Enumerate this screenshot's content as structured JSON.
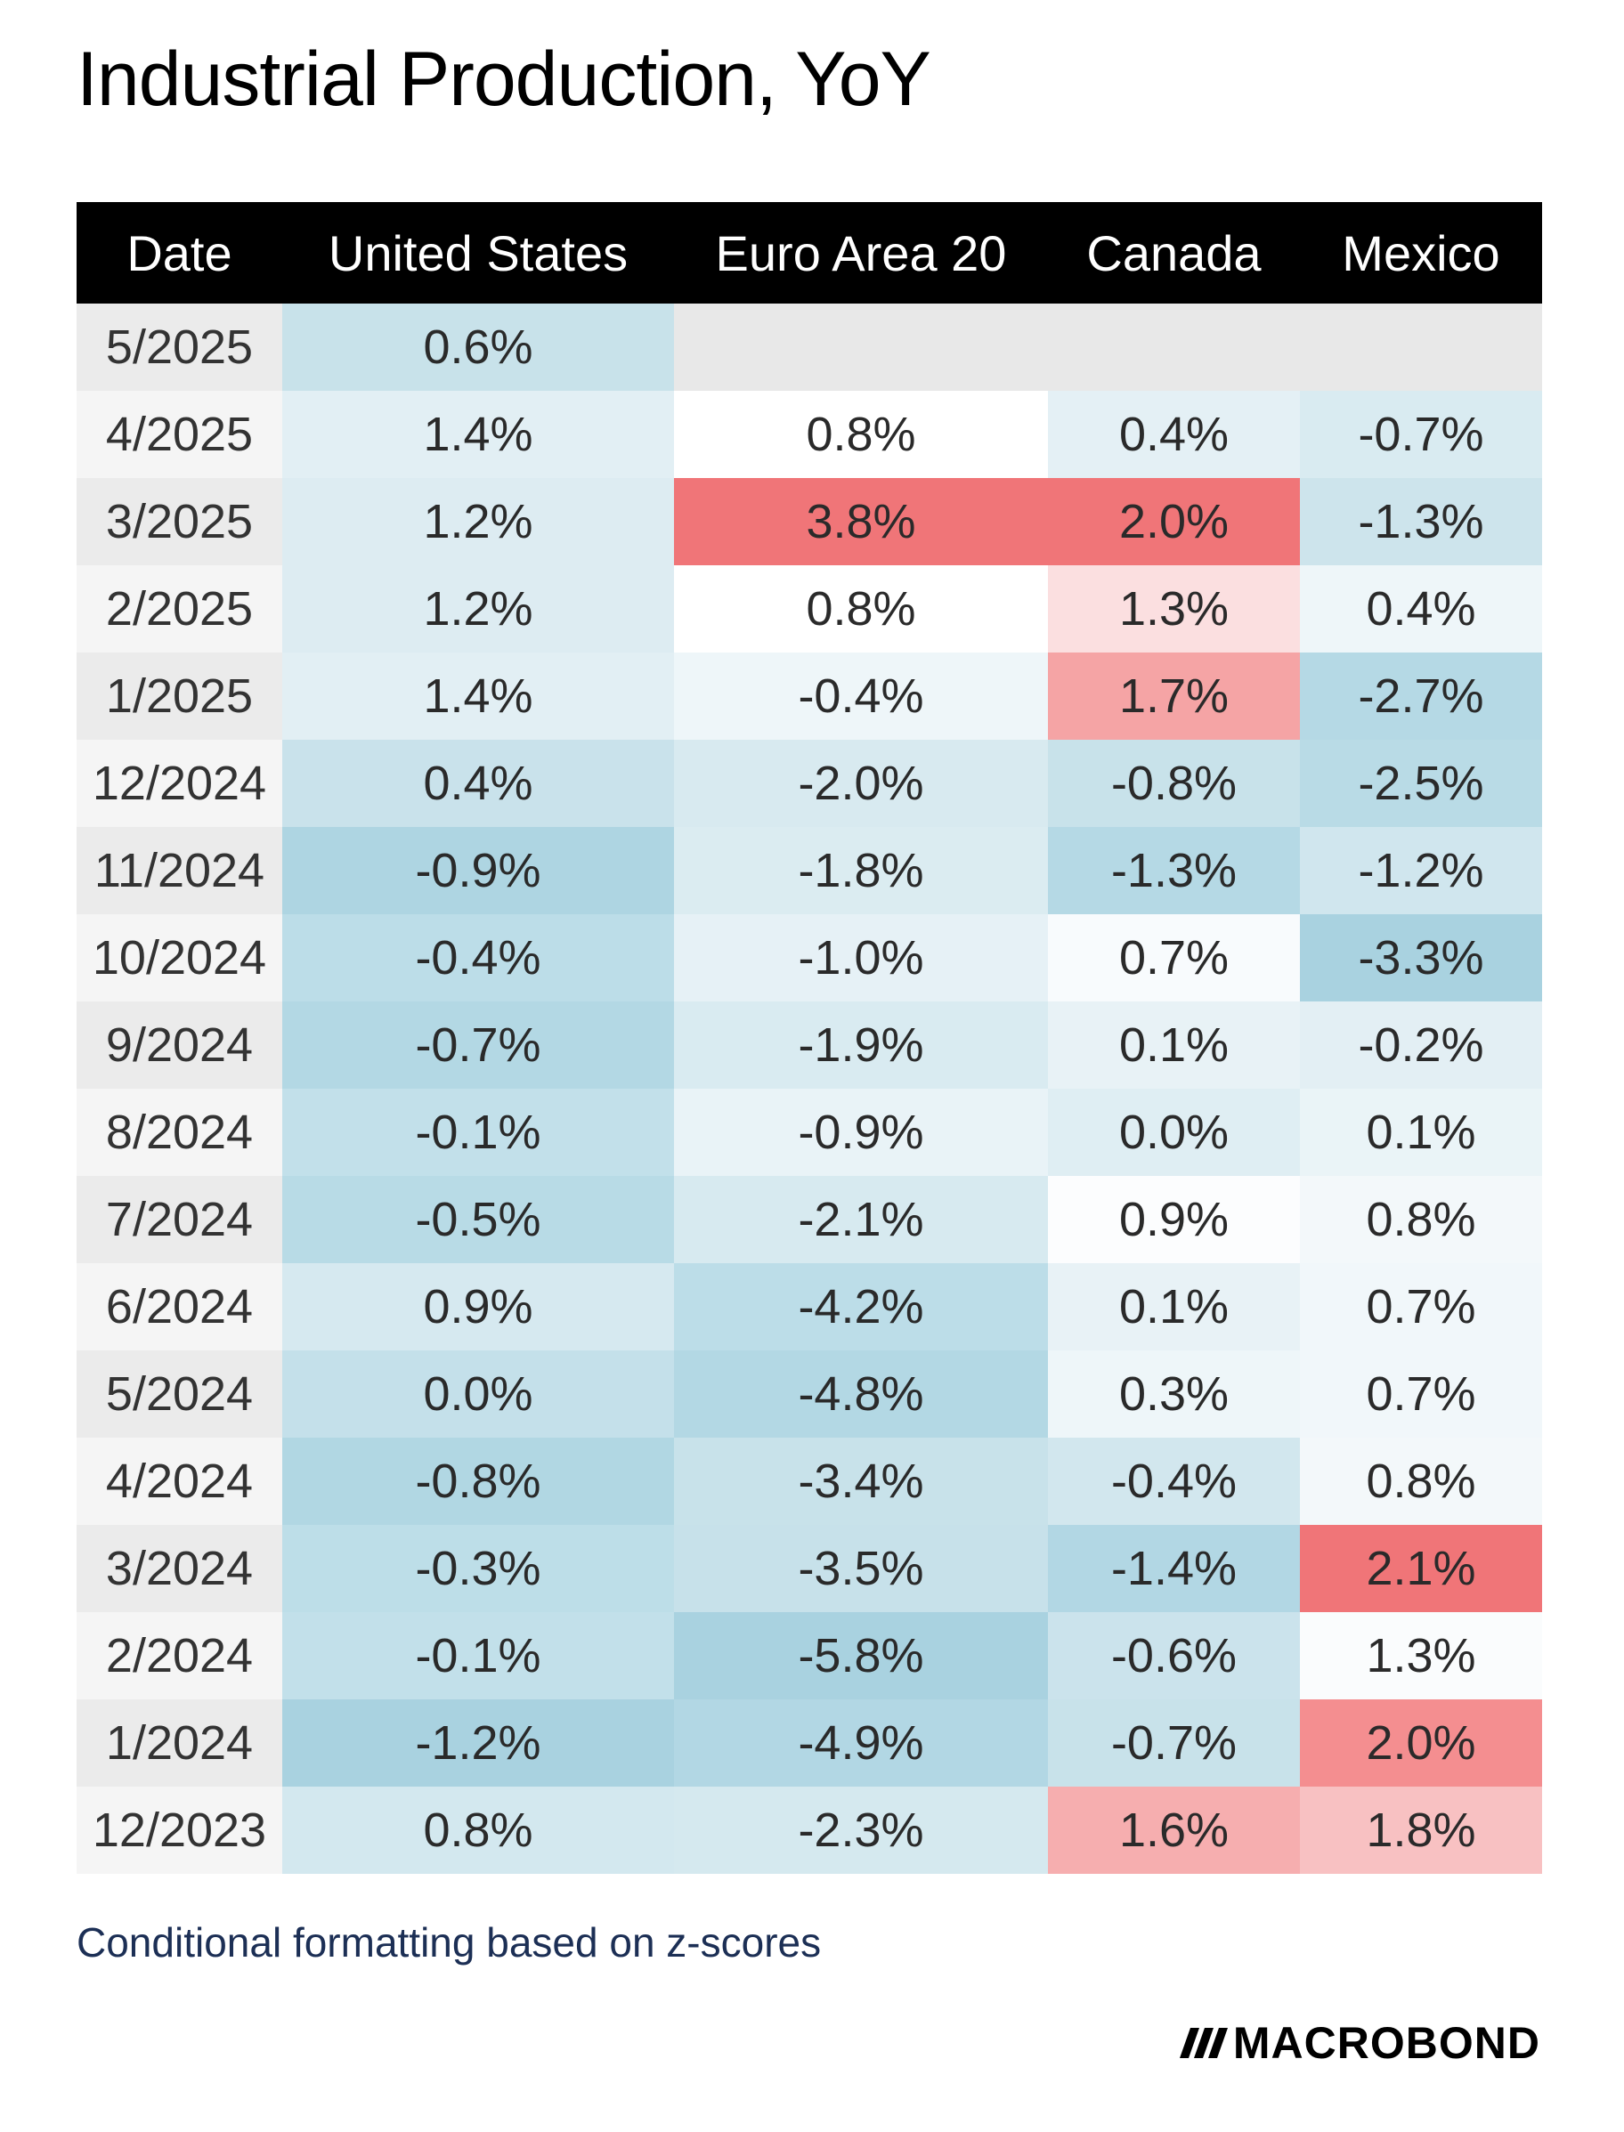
{
  "title": "Industrial Production, YoY",
  "caption": "Conditional formatting based on z-scores",
  "brand": {
    "logo_text": "MACROBOND"
  },
  "colors": {
    "header_bg": "#000000",
    "header_text": "#ffffff",
    "date_band_a": "#ebebeb",
    "date_band_b": "#f5f5f5",
    "empty_cell": "#e8e8e8",
    "caption": "#1c2f55"
  },
  "chart_data": {
    "type": "table",
    "columns": [
      "Date",
      "United States",
      "Euro Area 20",
      "Canada",
      "Mexico"
    ],
    "rows": [
      {
        "date": "5/2025",
        "values": [
          "0.6%",
          "",
          "",
          ""
        ],
        "colors": [
          "#c8e2ea",
          null,
          null,
          null
        ]
      },
      {
        "date": "4/2025",
        "values": [
          "1.4%",
          "0.8%",
          "0.4%",
          "-0.7%"
        ],
        "colors": [
          "#e2eff4",
          "#ffffff",
          "#e4f0f5",
          "#d9ebf1"
        ]
      },
      {
        "date": "3/2025",
        "values": [
          "1.2%",
          "3.8%",
          "2.0%",
          "-1.3%"
        ],
        "colors": [
          "#ddecf2",
          "#f07578",
          "#f07578",
          "#cde4ec"
        ]
      },
      {
        "date": "2/2025",
        "values": [
          "1.2%",
          "0.8%",
          "1.3%",
          "0.4%"
        ],
        "colors": [
          "#ddecf2",
          "#ffffff",
          "#fbdfe0",
          "#eef6f9"
        ]
      },
      {
        "date": "1/2025",
        "values": [
          "1.4%",
          "-0.4%",
          "1.7%",
          "-2.7%"
        ],
        "colors": [
          "#e2eff4",
          "#eef6f9",
          "#f5a4a5",
          "#b5d9e5"
        ]
      },
      {
        "date": "12/2024",
        "values": [
          "0.4%",
          "-2.0%",
          "-0.8%",
          "-2.5%"
        ],
        "colors": [
          "#c9e2eb",
          "#d8eaf0",
          "#c8e2ea",
          "#b9dbe6"
        ]
      },
      {
        "date": "11/2024",
        "values": [
          "-0.9%",
          "-1.8%",
          "-1.3%",
          "-1.2%"
        ],
        "colors": [
          "#aed5e2",
          "#dbecf1",
          "#b5d9e5",
          "#d0e6ee"
        ]
      },
      {
        "date": "10/2024",
        "values": [
          "-0.4%",
          "-1.0%",
          "0.7%",
          "-3.3%"
        ],
        "colors": [
          "#bcdde8",
          "#e6f1f6",
          "#f8fbfd",
          "#a9d2e0"
        ]
      },
      {
        "date": "9/2024",
        "values": [
          "-0.7%",
          "-1.9%",
          "0.1%",
          "-0.2%"
        ],
        "colors": [
          "#b3d8e4",
          "#d9ebf1",
          "#e8f2f6",
          "#e3eff4"
        ]
      },
      {
        "date": "8/2024",
        "values": [
          "-0.1%",
          "-0.9%",
          "0.0%",
          "0.1%"
        ],
        "colors": [
          "#c2e0ea",
          "#e9f3f7",
          "#dfeef3",
          "#eaf4f7"
        ]
      },
      {
        "date": "7/2024",
        "values": [
          "-0.5%",
          "-2.1%",
          "0.9%",
          "0.8%"
        ],
        "colors": [
          "#b8dbe6",
          "#d7eaf0",
          "#fcfdfe",
          "#f3f8fa"
        ]
      },
      {
        "date": "6/2024",
        "values": [
          "0.9%",
          "-4.2%",
          "0.1%",
          "0.7%"
        ],
        "colors": [
          "#d6e9f0",
          "#bcdde8",
          "#e8f2f6",
          "#f1f7fa"
        ]
      },
      {
        "date": "5/2024",
        "values": [
          "0.0%",
          "-4.8%",
          "0.3%",
          "0.7%"
        ],
        "colors": [
          "#c4e0ea",
          "#b3d8e4",
          "#eef6f9",
          "#f1f7fa"
        ]
      },
      {
        "date": "4/2024",
        "values": [
          "-0.8%",
          "-3.4%",
          "-0.4%",
          "0.8%"
        ],
        "colors": [
          "#b1d7e3",
          "#c8e2ea",
          "#d2e7ee",
          "#f3f8fa"
        ]
      },
      {
        "date": "3/2024",
        "values": [
          "-0.3%",
          "-3.5%",
          "-1.4%",
          "2.1%"
        ],
        "colors": [
          "#bddee8",
          "#c7e1ea",
          "#b2d7e4",
          "#f07578"
        ]
      },
      {
        "date": "2/2024",
        "values": [
          "-0.1%",
          "-5.8%",
          "-0.6%",
          "1.3%"
        ],
        "colors": [
          "#c2e0ea",
          "#a9d2e0",
          "#cbe3ec",
          "#fafcfd"
        ]
      },
      {
        "date": "1/2024",
        "values": [
          "-1.2%",
          "-4.9%",
          "-0.7%",
          "2.0%"
        ],
        "colors": [
          "#a9d2e0",
          "#b2d7e4",
          "#c8e2ea",
          "#f48e90"
        ]
      },
      {
        "date": "12/2023",
        "values": [
          "0.8%",
          "-2.3%",
          "1.6%",
          "1.8%"
        ],
        "colors": [
          "#d3e8ef",
          "#d5e9ef",
          "#f6aeaf",
          "#f8c1c2"
        ]
      }
    ]
  }
}
